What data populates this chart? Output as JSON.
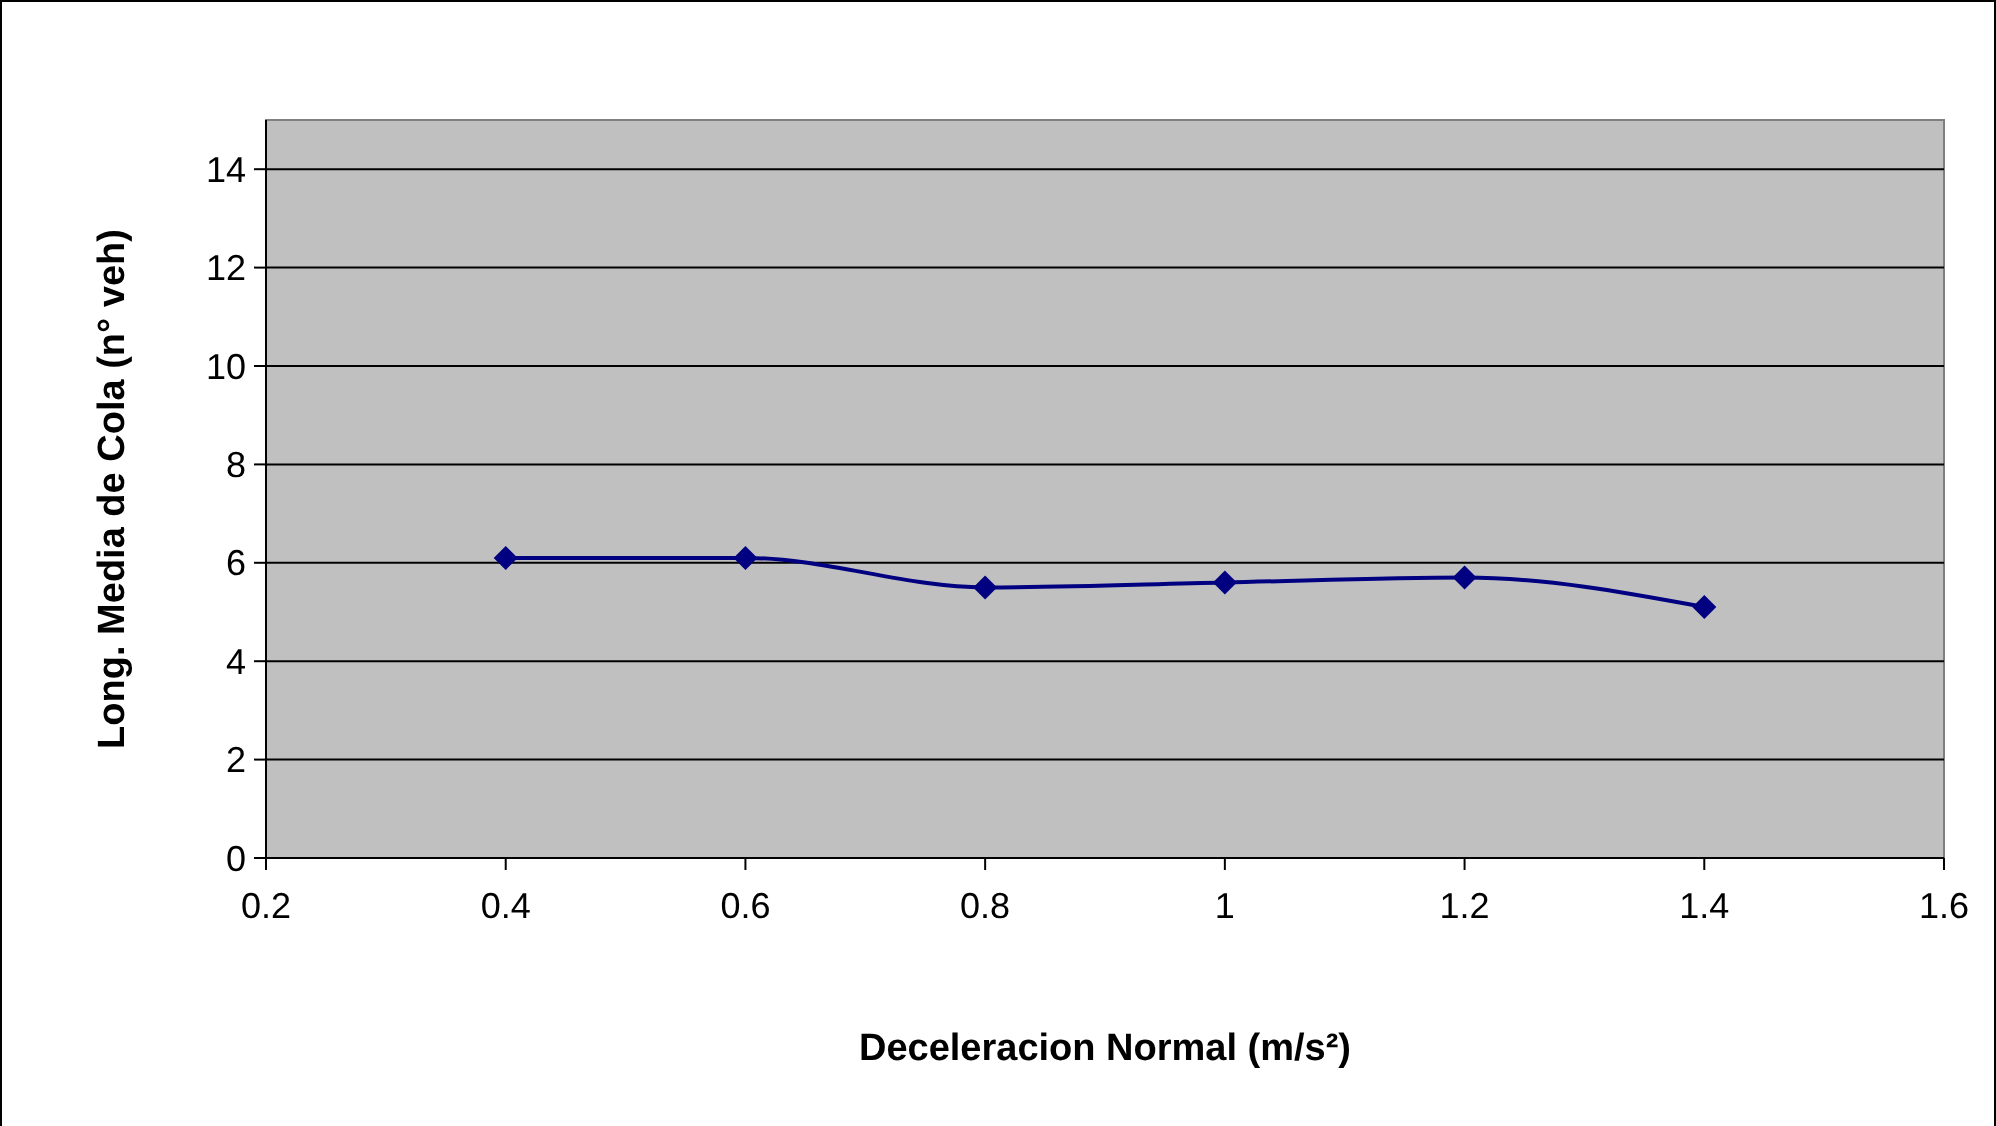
{
  "chart_data": {
    "type": "line",
    "xlabel": "Deceleracion Normal (m/s²)",
    "ylabel": "Long. Media de Cola (n° veh)",
    "x": [
      0.4,
      0.6,
      0.8,
      1.0,
      1.2,
      1.4
    ],
    "series": [
      {
        "color": "#000080",
        "values": [
          6.1,
          6.1,
          5.5,
          5.6,
          5.7,
          5.1
        ]
      }
    ],
    "xlim": [
      0.2,
      1.6
    ],
    "xticks": [
      0.2,
      0.4,
      0.6,
      0.8,
      1,
      1.2,
      1.4,
      1.6
    ],
    "ylim": [
      0,
      15
    ],
    "yticks": [
      0,
      2,
      4,
      6,
      8,
      10,
      12,
      14
    ],
    "grid": "y",
    "marker": "diamond",
    "line_style": "solid"
  }
}
